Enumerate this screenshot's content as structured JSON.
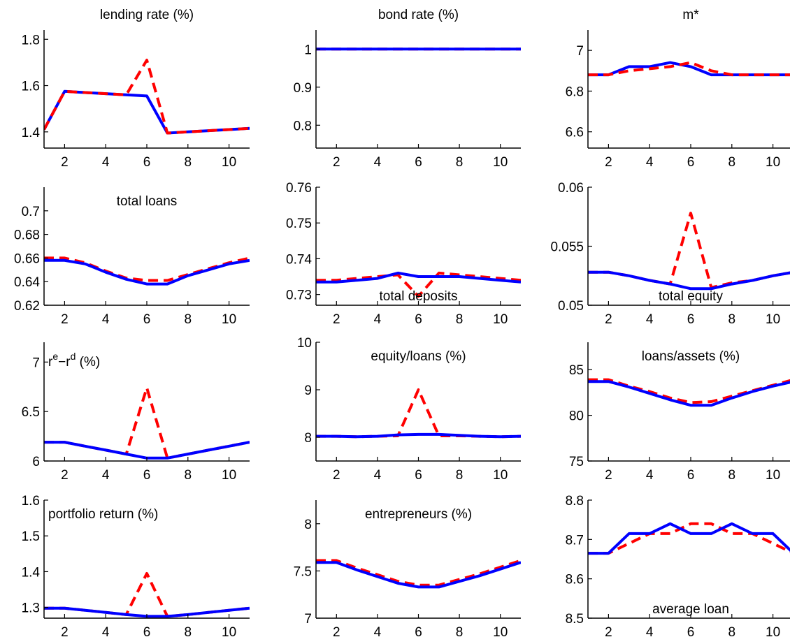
{
  "colors": {
    "blue": "#0000ff",
    "red": "#ff0000"
  },
  "chart_data": [
    {
      "type": "line",
      "title": "lending rate (%)",
      "title_pos": "top",
      "x": [
        1,
        2,
        3,
        4,
        5,
        6,
        7,
        8,
        9,
        10,
        11
      ],
      "xlim": [
        1,
        11
      ],
      "ylim": [
        1.33,
        1.84
      ],
      "yticks": [
        "1.4",
        "1.6",
        "1.8"
      ],
      "xticks": [
        "2",
        "4",
        "6",
        "8",
        "10"
      ],
      "grid": false,
      "series": [
        {
          "style": "solid",
          "color": "#0000ff",
          "values": [
            1.41,
            1.575,
            1.57,
            1.565,
            1.56,
            1.555,
            1.395,
            1.4,
            1.405,
            1.41,
            1.415
          ]
        },
        {
          "style": "dashed",
          "color": "#ff0000",
          "values": [
            1.41,
            1.575,
            1.57,
            1.565,
            1.56,
            1.71,
            1.395,
            1.4,
            1.405,
            1.41,
            1.415
          ]
        }
      ]
    },
    {
      "type": "line",
      "title": "bond rate (%)",
      "title_pos": "top",
      "x": [
        1,
        2,
        3,
        4,
        5,
        6,
        7,
        8,
        9,
        10,
        11
      ],
      "xlim": [
        1,
        11
      ],
      "ylim": [
        0.74,
        1.05
      ],
      "yticks": [
        "0.8",
        "0.9",
        "1"
      ],
      "xticks": [
        "2",
        "4",
        "6",
        "8",
        "10"
      ],
      "grid": false,
      "series": [
        {
          "style": "dashed",
          "color": "#ff0000",
          "values": [
            1,
            1,
            1,
            1,
            1,
            1,
            1,
            1,
            1,
            1,
            1
          ]
        },
        {
          "style": "solid",
          "color": "#0000ff",
          "values": [
            1,
            1,
            1,
            1,
            1,
            1,
            1,
            1,
            1,
            1,
            1
          ]
        }
      ]
    },
    {
      "type": "line",
      "title": "m*",
      "title_pos": "top",
      "x": [
        1,
        2,
        3,
        4,
        5,
        6,
        7,
        8,
        9,
        10,
        11
      ],
      "xlim": [
        1,
        11
      ],
      "ylim": [
        6.52,
        7.1
      ],
      "yticks": [
        "6.6",
        "6.8",
        "7"
      ],
      "xticks": [
        "2",
        "4",
        "6",
        "8",
        "10"
      ],
      "grid": false,
      "series": [
        {
          "style": "solid",
          "color": "#0000ff",
          "values": [
            6.88,
            6.88,
            6.92,
            6.92,
            6.94,
            6.92,
            6.88,
            6.88,
            6.88,
            6.88,
            6.88
          ]
        },
        {
          "style": "dashed",
          "color": "#ff0000",
          "values": [
            6.88,
            6.88,
            6.9,
            6.91,
            6.92,
            6.94,
            6.9,
            6.88,
            6.88,
            6.88,
            6.88
          ]
        }
      ]
    },
    {
      "type": "line",
      "title": "total loans",
      "title_pos": "upper",
      "x": [
        1,
        2,
        3,
        4,
        5,
        6,
        7,
        8,
        9,
        10,
        11
      ],
      "xlim": [
        1,
        11
      ],
      "ylim": [
        0.62,
        0.72
      ],
      "yticks": [
        "0.62",
        "0.64",
        "0.66",
        "0.68",
        "0.7"
      ],
      "xticks": [
        "2",
        "4",
        "6",
        "8",
        "10"
      ],
      "grid": false,
      "series": [
        {
          "style": "dashed",
          "color": "#ff0000",
          "values": [
            0.66,
            0.66,
            0.656,
            0.649,
            0.643,
            0.641,
            0.641,
            0.646,
            0.651,
            0.656,
            0.66
          ]
        },
        {
          "style": "solid",
          "color": "#0000ff",
          "values": [
            0.658,
            0.658,
            0.655,
            0.648,
            0.642,
            0.638,
            0.638,
            0.645,
            0.65,
            0.655,
            0.658
          ]
        }
      ]
    },
    {
      "type": "line",
      "title": "total deposits",
      "title_pos": "lower",
      "x": [
        1,
        2,
        3,
        4,
        5,
        6,
        7,
        8,
        9,
        10,
        11
      ],
      "xlim": [
        1,
        11
      ],
      "ylim": [
        0.727,
        0.76
      ],
      "yticks": [
        "0.73",
        "0.74",
        "0.75",
        "0.76"
      ],
      "xticks": [
        "2",
        "4",
        "6",
        "8",
        "10"
      ],
      "grid": false,
      "series": [
        {
          "style": "dashed",
          "color": "#ff0000",
          "values": [
            0.734,
            0.734,
            0.7345,
            0.735,
            0.7355,
            0.7295,
            0.736,
            0.7355,
            0.735,
            0.7345,
            0.734
          ]
        },
        {
          "style": "solid",
          "color": "#0000ff",
          "values": [
            0.7335,
            0.7335,
            0.734,
            0.7345,
            0.736,
            0.735,
            0.735,
            0.735,
            0.7345,
            0.734,
            0.7335
          ]
        }
      ]
    },
    {
      "type": "line",
      "title": "total equity",
      "title_pos": "lower",
      "x": [
        1,
        2,
        3,
        4,
        5,
        6,
        7,
        8,
        9,
        10,
        11
      ],
      "xlim": [
        1,
        11
      ],
      "ylim": [
        0.05,
        0.06
      ],
      "yticks": [
        "0.05",
        "0.055",
        "0.06"
      ],
      "xticks": [
        "2",
        "4",
        "6",
        "8",
        "10"
      ],
      "grid": false,
      "series": [
        {
          "style": "dashed",
          "color": "#ff0000",
          "values": [
            0.0528,
            0.0528,
            0.0525,
            0.0521,
            0.0518,
            0.0578,
            0.0515,
            0.0519,
            0.0521,
            0.0525,
            0.0528
          ]
        },
        {
          "style": "solid",
          "color": "#0000ff",
          "values": [
            0.0528,
            0.0528,
            0.0525,
            0.0521,
            0.0518,
            0.0514,
            0.0514,
            0.0518,
            0.0521,
            0.0525,
            0.0528
          ]
        }
      ]
    },
    {
      "type": "line",
      "title": "r",
      "title_pos": "upper-left",
      "title_parts": [
        "r",
        "e",
        "−r",
        "d",
        " (%)"
      ],
      "x": [
        1,
        2,
        3,
        4,
        5,
        6,
        7,
        8,
        9,
        10,
        11
      ],
      "xlim": [
        1,
        11
      ],
      "ylim": [
        6.0,
        7.2
      ],
      "yticks": [
        "6",
        "6.5",
        "7"
      ],
      "xticks": [
        "2",
        "4",
        "6",
        "8",
        "10"
      ],
      "grid": false,
      "series": [
        {
          "style": "dashed",
          "color": "#ff0000",
          "values": [
            6.19,
            6.19,
            6.15,
            6.11,
            6.07,
            6.74,
            6.03,
            6.07,
            6.11,
            6.15,
            6.19
          ]
        },
        {
          "style": "solid",
          "color": "#0000ff",
          "values": [
            6.19,
            6.19,
            6.15,
            6.11,
            6.07,
            6.03,
            6.03,
            6.07,
            6.11,
            6.15,
            6.19
          ]
        }
      ]
    },
    {
      "type": "line",
      "title": "equity/loans (%)",
      "title_pos": "upper",
      "x": [
        1,
        2,
        3,
        4,
        5,
        6,
        7,
        8,
        9,
        10,
        11
      ],
      "xlim": [
        1,
        11
      ],
      "ylim": [
        7.5,
        10
      ],
      "yticks": [
        "8",
        "9",
        "10"
      ],
      "xticks": [
        "2",
        "4",
        "6",
        "8",
        "10"
      ],
      "grid": false,
      "series": [
        {
          "style": "dashed",
          "color": "#ff0000",
          "values": [
            8.02,
            8.02,
            8.01,
            8.02,
            8.03,
            9.0,
            8.03,
            8.03,
            8.02,
            8.01,
            8.02
          ]
        },
        {
          "style": "solid",
          "color": "#0000ff",
          "values": [
            8.02,
            8.02,
            8.01,
            8.02,
            8.05,
            8.06,
            8.06,
            8.04,
            8.02,
            8.01,
            8.02
          ]
        }
      ]
    },
    {
      "type": "line",
      "title": "loans/assets (%)",
      "title_pos": "upper",
      "x": [
        1,
        2,
        3,
        4,
        5,
        6,
        7,
        8,
        9,
        10,
        11
      ],
      "xlim": [
        1,
        11
      ],
      "ylim": [
        75,
        88
      ],
      "yticks": [
        "75",
        "80",
        "85"
      ],
      "xticks": [
        "2",
        "4",
        "6",
        "8",
        "10"
      ],
      "grid": false,
      "series": [
        {
          "style": "dashed",
          "color": "#ff0000",
          "values": [
            83.9,
            83.9,
            83.2,
            82.6,
            81.9,
            81.4,
            81.5,
            82.1,
            82.7,
            83.3,
            83.9
          ]
        },
        {
          "style": "solid",
          "color": "#0000ff",
          "values": [
            83.7,
            83.7,
            83.1,
            82.4,
            81.7,
            81.1,
            81.1,
            81.9,
            82.6,
            83.2,
            83.7
          ]
        }
      ]
    },
    {
      "type": "line",
      "title": "portfolio return (%)",
      "title_pos": "upper-left",
      "x": [
        1,
        2,
        3,
        4,
        5,
        6,
        7,
        8,
        9,
        10,
        11
      ],
      "xlim": [
        1,
        11
      ],
      "ylim": [
        1.27,
        1.6
      ],
      "yticks": [
        "1.3",
        "1.4",
        "1.5",
        "1.6"
      ],
      "xticks": [
        "2",
        "4",
        "6",
        "8",
        "10"
      ],
      "grid": false,
      "series": [
        {
          "style": "dashed",
          "color": "#ff0000",
          "values": [
            1.298,
            1.298,
            1.292,
            1.286,
            1.28,
            1.395,
            1.275,
            1.28,
            1.286,
            1.292,
            1.298
          ]
        },
        {
          "style": "solid",
          "color": "#0000ff",
          "values": [
            1.298,
            1.298,
            1.292,
            1.286,
            1.28,
            1.275,
            1.275,
            1.28,
            1.286,
            1.292,
            1.298
          ]
        }
      ]
    },
    {
      "type": "line",
      "title": "entrepreneurs (%)",
      "title_pos": "upper",
      "x": [
        1,
        2,
        3,
        4,
        5,
        6,
        7,
        8,
        9,
        10,
        11
      ],
      "xlim": [
        1,
        11
      ],
      "ylim": [
        7.0,
        8.25
      ],
      "yticks": [
        "7",
        "7.5",
        "8"
      ],
      "xticks": [
        "2",
        "4",
        "6",
        "8",
        "10"
      ],
      "grid": false,
      "series": [
        {
          "style": "dashed",
          "color": "#ff0000",
          "values": [
            7.61,
            7.61,
            7.53,
            7.46,
            7.39,
            7.35,
            7.35,
            7.41,
            7.47,
            7.54,
            7.61
          ]
        },
        {
          "style": "solid",
          "color": "#0000ff",
          "values": [
            7.59,
            7.59,
            7.51,
            7.44,
            7.37,
            7.33,
            7.33,
            7.39,
            7.45,
            7.52,
            7.59
          ]
        }
      ]
    },
    {
      "type": "line",
      "title": "average loan",
      "title_pos": "lower",
      "x": [
        1,
        2,
        3,
        4,
        5,
        6,
        7,
        8,
        9,
        10,
        11
      ],
      "xlim": [
        1,
        11
      ],
      "ylim": [
        8.5,
        8.8
      ],
      "yticks": [
        "8.5",
        "8.6",
        "8.7",
        "8.8"
      ],
      "xticks": [
        "2",
        "4",
        "6",
        "8",
        "10"
      ],
      "grid": false,
      "series": [
        {
          "style": "dashed",
          "color": "#ff0000",
          "values": [
            8.665,
            8.665,
            8.69,
            8.715,
            8.715,
            8.74,
            8.74,
            8.715,
            8.715,
            8.69,
            8.665
          ]
        },
        {
          "style": "solid",
          "color": "#0000ff",
          "values": [
            8.665,
            8.665,
            8.715,
            8.715,
            8.74,
            8.715,
            8.715,
            8.74,
            8.715,
            8.715,
            8.665
          ]
        }
      ]
    }
  ]
}
